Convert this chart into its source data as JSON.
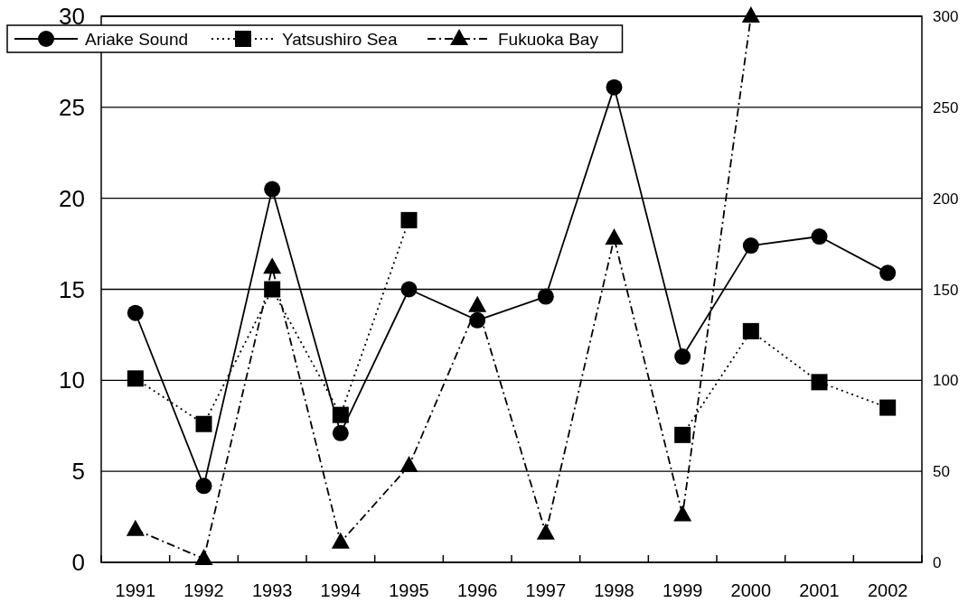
{
  "chart_data": {
    "type": "line",
    "categories": [
      "1991",
      "1992",
      "1993",
      "1994",
      "1995",
      "1996",
      "1997",
      "1998",
      "1999",
      "2000",
      "2001",
      "2002"
    ],
    "series": [
      {
        "name": "Ariake Sound",
        "color": "#000000",
        "marker": "circle",
        "line_style": "solid",
        "values": [
          13.7,
          4.2,
          20.5,
          7.1,
          15.0,
          13.3,
          14.6,
          26.1,
          11.3,
          17.4,
          17.9,
          15.9
        ]
      },
      {
        "name": "Yatsushiro Sea",
        "color": "#000000",
        "marker": "square",
        "line_style": "dotted",
        "values": [
          10.1,
          7.6,
          15.0,
          8.1,
          18.8,
          null,
          null,
          null,
          7.0,
          12.7,
          9.9,
          8.5
        ]
      },
      {
        "name": "Fukuoka Bay",
        "color": "#000000",
        "marker": "triangle",
        "line_style": "dashed",
        "axis": "y2",
        "values": [
          18,
          2,
          162,
          11,
          53,
          141,
          16,
          178,
          26,
          300,
          null,
          null
        ]
      }
    ],
    "ylim": [
      0,
      30
    ],
    "yticks": [
      0,
      5,
      10,
      15,
      20,
      25,
      30
    ],
    "y2lim": [
      0,
      300
    ],
    "y2ticks": [
      0,
      50,
      100,
      150,
      200,
      250,
      300
    ],
    "grid": "y",
    "legend": "top left"
  }
}
